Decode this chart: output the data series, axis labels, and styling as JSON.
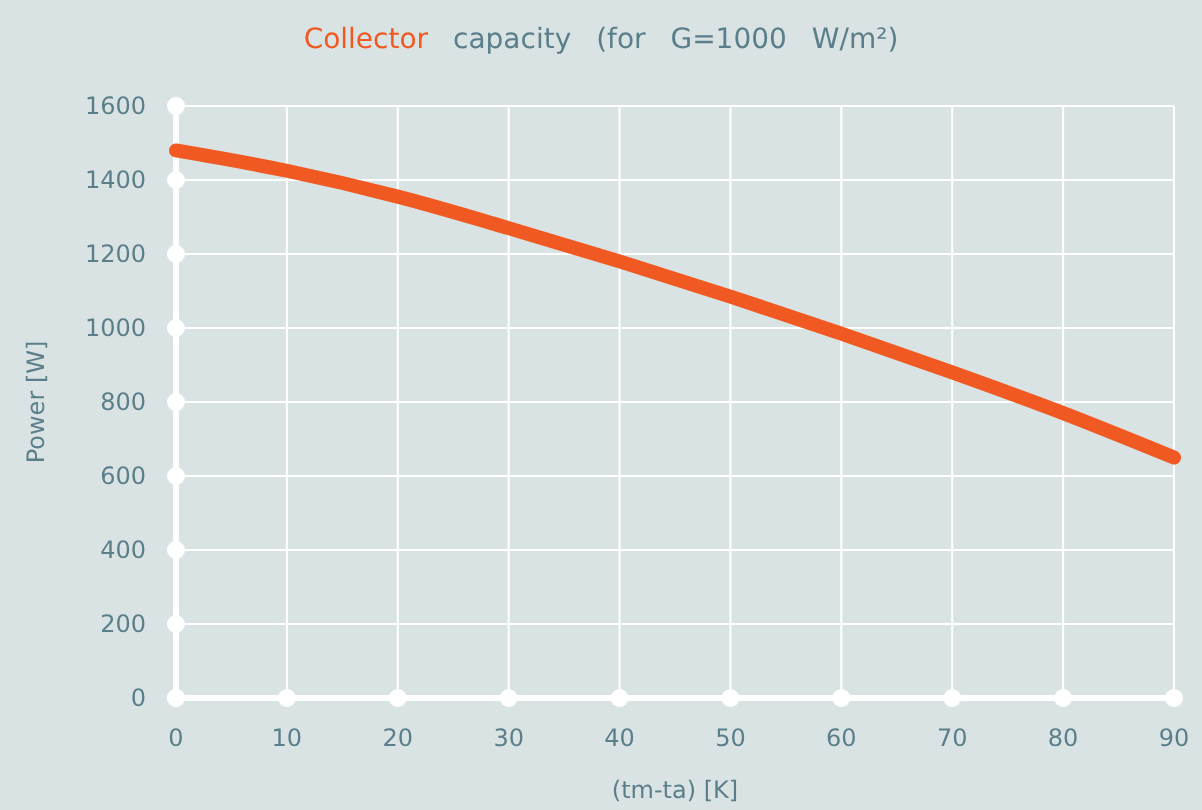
{
  "chart_data": {
    "type": "line",
    "title": "Collector capacity (for G=1000 W/m²)",
    "xlabel": "(tm-ta) [K]",
    "ylabel": "Power [W]",
    "x": [
      0,
      10,
      20,
      30,
      40,
      50,
      60,
      70,
      80,
      90
    ],
    "series": [
      {
        "color": "#f05a22",
        "values": [
          1480,
          1425,
          1355,
          1270,
          1180,
          1085,
          985,
          880,
          770,
          650
        ]
      }
    ],
    "xlim": [
      0,
      90
    ],
    "xticks": [
      0,
      10,
      20,
      30,
      40,
      50,
      60,
      70,
      80,
      90
    ],
    "ylim": [
      0,
      1600
    ],
    "yticks": [
      0,
      200,
      400,
      600,
      800,
      1000,
      1200,
      1400,
      1600
    ],
    "grid": true,
    "marker": "none",
    "line_style": "solid"
  }
}
